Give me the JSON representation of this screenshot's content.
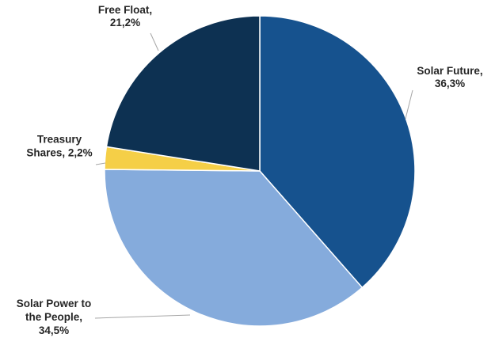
{
  "chart_data": {
    "type": "pie",
    "title": "",
    "slices": [
      {
        "name": "Solar Future",
        "value": 36.3,
        "color": "#16528E",
        "label_lines": [
          "Solar Future,",
          "36,3%"
        ]
      },
      {
        "name": "Solar Power to the People",
        "value": 34.5,
        "color": "#85ABDC",
        "label_lines": [
          "Solar Power to",
          "the People,",
          "34,5%"
        ]
      },
      {
        "name": "Treasury Shares",
        "value": 2.2,
        "color": "#F5CF47",
        "label_lines": [
          "Treasury",
          "Shares, 2,2%"
        ]
      },
      {
        "name": "Free Float",
        "value": 21.2,
        "color": "#0D3152",
        "label_lines": [
          "Free Float,",
          "21,2%"
        ]
      }
    ],
    "start": "12 o'clock",
    "direction": "clockwise",
    "legend": "none",
    "labels": "outside with leader lines"
  }
}
